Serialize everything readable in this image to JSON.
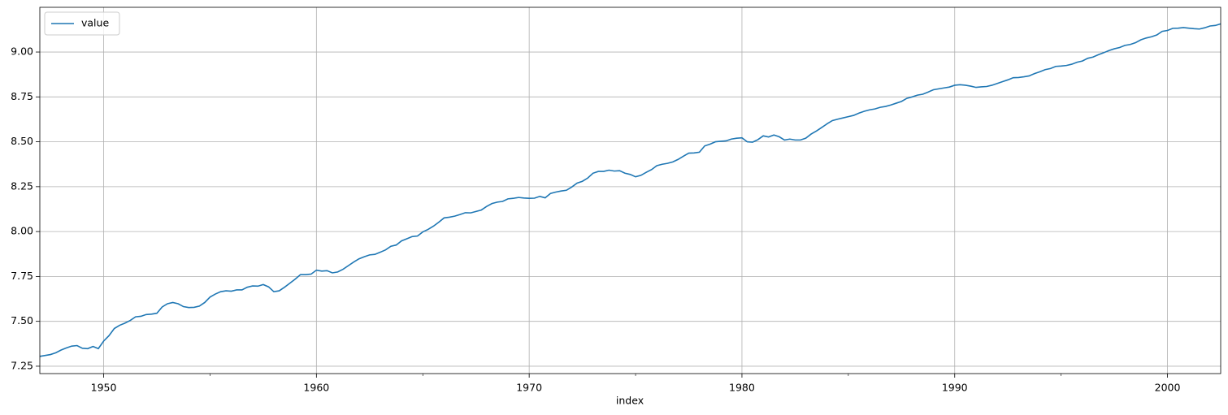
{
  "chart_data": {
    "type": "line",
    "xlabel": "index",
    "x": [
      1947,
      1947.25,
      1947.5,
      1947.75,
      1948,
      1948.25,
      1948.5,
      1948.75,
      1949,
      1949.25,
      1949.5,
      1949.75,
      1950,
      1950.25,
      1950.5,
      1950.75,
      1951,
      1951.25,
      1951.5,
      1951.75,
      1952,
      1952.25,
      1952.5,
      1952.75,
      1953,
      1953.25,
      1953.5,
      1953.75,
      1954,
      1954.25,
      1954.5,
      1954.75,
      1955,
      1955.25,
      1955.5,
      1955.75,
      1956,
      1956.25,
      1956.5,
      1956.75,
      1957,
      1957.25,
      1957.5,
      1957.75,
      1958,
      1958.25,
      1958.5,
      1958.75,
      1959,
      1959.25,
      1959.5,
      1959.75,
      1960,
      1960.25,
      1960.5,
      1960.75,
      1961,
      1961.25,
      1961.5,
      1961.75,
      1962,
      1962.25,
      1962.5,
      1962.75,
      1963,
      1963.25,
      1963.5,
      1963.75,
      1964,
      1964.25,
      1964.5,
      1964.75,
      1965,
      1965.25,
      1965.5,
      1965.75,
      1966,
      1966.25,
      1966.5,
      1966.75,
      1967,
      1967.25,
      1967.5,
      1967.75,
      1968,
      1968.25,
      1968.5,
      1968.75,
      1969,
      1969.25,
      1969.5,
      1969.75,
      1970,
      1970.25,
      1970.5,
      1970.75,
      1971,
      1971.25,
      1971.5,
      1971.75,
      1972,
      1972.25,
      1972.5,
      1972.75,
      1973,
      1973.25,
      1973.5,
      1973.75,
      1974,
      1974.25,
      1974.5,
      1974.75,
      1975,
      1975.25,
      1975.5,
      1975.75,
      1976,
      1976.25,
      1976.5,
      1976.75,
      1977,
      1977.25,
      1977.5,
      1977.75,
      1978,
      1978.25,
      1978.5,
      1978.75,
      1979,
      1979.25,
      1979.5,
      1979.75,
      1980,
      1980.25,
      1980.5,
      1980.75,
      1981,
      1981.25,
      1981.5,
      1981.75,
      1982,
      1982.25,
      1982.5,
      1982.75,
      1983,
      1983.25,
      1983.5,
      1983.75,
      1984,
      1984.25,
      1984.5,
      1984.75,
      1985,
      1985.25,
      1985.5,
      1985.75,
      1986,
      1986.25,
      1986.5,
      1986.75,
      1987,
      1987.25,
      1987.5,
      1987.75,
      1988,
      1988.25,
      1988.5,
      1988.75,
      1989,
      1989.25,
      1989.5,
      1989.75,
      1990,
      1990.25,
      1990.5,
      1990.75,
      1991,
      1991.25,
      1991.5,
      1991.75,
      1992,
      1992.25,
      1992.5,
      1992.75,
      1993,
      1993.25,
      1993.5,
      1993.75,
      1994,
      1994.25,
      1994.5,
      1994.75,
      1995,
      1995.25,
      1995.5,
      1995.75,
      1996,
      1996.25,
      1996.5,
      1996.75,
      1997,
      1997.25,
      1997.5,
      1997.75,
      1998,
      1998.25,
      1998.5,
      1998.75,
      1999,
      1999.25,
      1999.5,
      1999.75,
      2000,
      2000.25,
      2000.5,
      2000.75,
      2001,
      2001.25,
      2001.5,
      2001.75,
      2002,
      2002.25,
      2002.5
    ],
    "series": [
      {
        "name": "value",
        "color": "#1f77b4",
        "values": [
          7.305,
          7.31,
          7.315,
          7.325,
          7.34,
          7.352,
          7.362,
          7.365,
          7.35,
          7.348,
          7.36,
          7.348,
          7.39,
          7.42,
          7.46,
          7.478,
          7.49,
          7.505,
          7.525,
          7.528,
          7.538,
          7.54,
          7.545,
          7.58,
          7.598,
          7.605,
          7.598,
          7.582,
          7.577,
          7.578,
          7.585,
          7.605,
          7.635,
          7.652,
          7.665,
          7.67,
          7.668,
          7.675,
          7.675,
          7.69,
          7.697,
          7.696,
          7.705,
          7.692,
          7.665,
          7.67,
          7.69,
          7.712,
          7.735,
          7.76,
          7.76,
          7.763,
          7.785,
          7.78,
          7.782,
          7.77,
          7.775,
          7.79,
          7.81,
          7.83,
          7.848,
          7.86,
          7.87,
          7.873,
          7.885,
          7.898,
          7.918,
          7.925,
          7.948,
          7.96,
          7.972,
          7.975,
          7.998,
          8.012,
          8.03,
          8.052,
          8.076,
          8.08,
          8.086,
          8.095,
          8.105,
          8.104,
          8.112,
          8.12,
          8.14,
          8.156,
          8.164,
          8.168,
          8.182,
          8.185,
          8.19,
          8.187,
          8.185,
          8.186,
          8.196,
          8.188,
          8.212,
          8.22,
          8.226,
          8.23,
          8.248,
          8.27,
          8.28,
          8.298,
          8.325,
          8.335,
          8.335,
          8.342,
          8.337,
          8.339,
          8.325,
          8.318,
          8.305,
          8.313,
          8.33,
          8.345,
          8.367,
          8.375,
          8.38,
          8.388,
          8.402,
          8.42,
          8.437,
          8.438,
          8.442,
          8.477,
          8.487,
          8.5,
          8.503,
          8.505,
          8.515,
          8.52,
          8.522,
          8.5,
          8.498,
          8.512,
          8.533,
          8.527,
          8.538,
          8.528,
          8.51,
          8.515,
          8.51,
          8.51,
          8.52,
          8.543,
          8.56,
          8.58,
          8.6,
          8.618,
          8.626,
          8.633,
          8.64,
          8.647,
          8.66,
          8.67,
          8.678,
          8.683,
          8.692,
          8.697,
          8.705,
          8.715,
          8.725,
          8.742,
          8.75,
          8.76,
          8.765,
          8.777,
          8.79,
          8.795,
          8.8,
          8.805,
          8.815,
          8.818,
          8.815,
          8.81,
          8.803,
          8.806,
          8.808,
          8.815,
          8.825,
          8.835,
          8.845,
          8.857,
          8.858,
          8.862,
          8.867,
          8.88,
          8.89,
          8.902,
          8.908,
          8.92,
          8.922,
          8.925,
          8.932,
          8.943,
          8.95,
          8.965,
          8.972,
          8.985,
          8.996,
          9.008,
          9.018,
          9.025,
          9.037,
          9.042,
          9.052,
          9.068,
          9.078,
          9.085,
          9.095,
          9.115,
          9.12,
          9.132,
          9.133,
          9.136,
          9.133,
          9.13,
          9.128,
          9.135,
          9.145,
          9.148,
          9.157
        ]
      }
    ],
    "xlim": [
      1947,
      2002.5
    ],
    "xticks": [
      1950,
      1960,
      1970,
      1980,
      1990,
      2000
    ],
    "xminorticks": [
      1955,
      1965,
      1975,
      1985,
      1995
    ],
    "ylim": [
      7.209,
      9.249
    ],
    "yticks": [
      7.25,
      {
        "value": 7.5,
        "label": "7.50"
      },
      7.75,
      {
        "value": 8,
        "label": "8.00"
      },
      8.25,
      {
        "value": 8.5,
        "label": "8.50"
      },
      8.75,
      {
        "value": 9,
        "label": "9.00"
      }
    ],
    "grid": true,
    "legend": "upper left"
  }
}
